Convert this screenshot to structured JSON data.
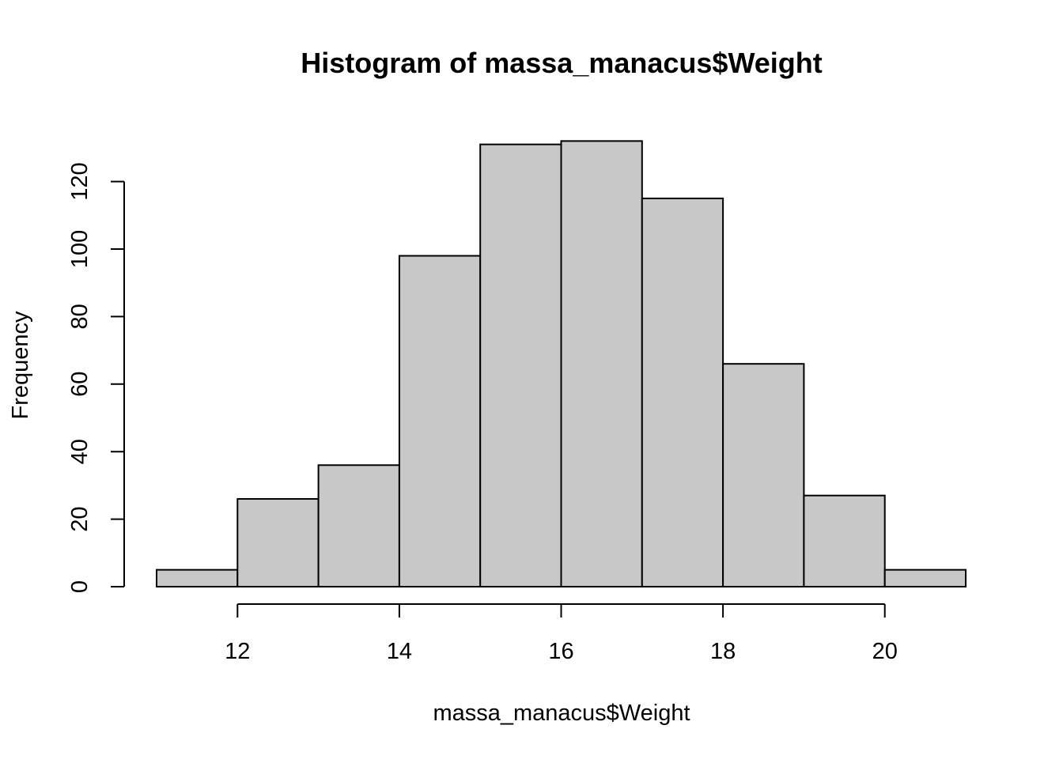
{
  "chart_data": {
    "type": "bar",
    "title": "Histogram of massa_manacus$Weight",
    "xlabel": "massa_manacus$Weight",
    "ylabel": "Frequency",
    "bins": [
      {
        "start": 11,
        "end": 12,
        "value": 5
      },
      {
        "start": 12,
        "end": 13,
        "value": 26
      },
      {
        "start": 13,
        "end": 14,
        "value": 36
      },
      {
        "start": 14,
        "end": 15,
        "value": 98
      },
      {
        "start": 15,
        "end": 16,
        "value": 131
      },
      {
        "start": 16,
        "end": 17,
        "value": 132
      },
      {
        "start": 17,
        "end": 18,
        "value": 115
      },
      {
        "start": 18,
        "end": 19,
        "value": 66
      },
      {
        "start": 19,
        "end": 20,
        "value": 27
      },
      {
        "start": 20,
        "end": 21,
        "value": 5
      }
    ],
    "xlim": [
      11,
      21
    ],
    "ylim": [
      0,
      132
    ],
    "x_ticks": [
      12,
      14,
      16,
      18,
      20
    ],
    "y_ticks": [
      0,
      20,
      40,
      60,
      80,
      100,
      120
    ],
    "grid": false,
    "bar_fill": "#c8c8c8",
    "bar_edge": "#000000"
  }
}
